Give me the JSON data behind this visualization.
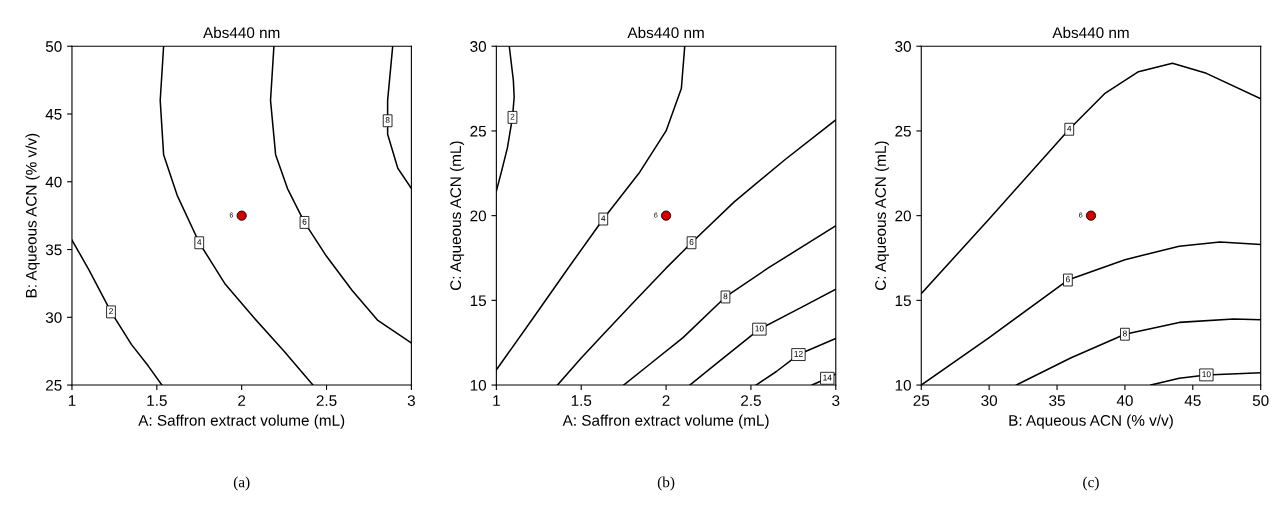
{
  "chart_data": [
    {
      "type": "line",
      "title": "Abs440 nm",
      "xlabel": "A: Saffron extract volume (mL)",
      "ylabel": "B: Aqueous ACN (% v/v)",
      "xlim": [
        1,
        3
      ],
      "ylim": [
        25,
        50
      ],
      "xticks": [
        1,
        1.5,
        2,
        2.5,
        3
      ],
      "yticks": [
        25,
        30,
        35,
        40,
        45,
        50
      ],
      "grid": false,
      "legend": false,
      "annotations": [
        "(a)",
        "6",
        {
          "text": "2",
          "x": 1.23,
          "y": 30.4
        },
        {
          "text": "4",
          "x": 1.75,
          "y": 35.5
        },
        {
          "text": "6",
          "x": 2.37,
          "y": 37
        },
        {
          "text": "8",
          "x": 2.86,
          "y": 44.5
        }
      ],
      "series": [
        {
          "color": "#000000",
          "x": [
            1,
            1.1,
            1.23,
            1.35,
            1.45,
            1.53
          ],
          "values": [
            35.7,
            33.5,
            30.4,
            28,
            26.4,
            25
          ]
        },
        {
          "color": "#000000",
          "x": [
            1.54,
            1.52,
            1.54,
            1.62,
            1.75,
            1.9,
            2.07,
            2.25,
            2.42
          ],
          "values": [
            50,
            46,
            42,
            39,
            35.5,
            32.5,
            30,
            27.5,
            25
          ]
        },
        {
          "color": "#000000",
          "x": [
            2.19,
            2.17,
            2.2,
            2.27,
            2.37,
            2.5,
            2.65,
            2.8,
            3
          ],
          "values": [
            50,
            46,
            42,
            39.5,
            37,
            34.5,
            32,
            29.8,
            28.1
          ]
        },
        {
          "color": "#000000",
          "x": [
            2.89,
            2.86,
            2.86,
            2.86,
            2.92,
            3
          ],
          "values": [
            50,
            46,
            44.5,
            43.5,
            41,
            39.5
          ]
        },
        {
          "type": "scatter",
          "marker": "circle",
          "color": "#d40000",
          "x": [
            2
          ],
          "values": [
            37.5
          ]
        }
      ]
    },
    {
      "type": "line",
      "title": "Abs440 nm",
      "xlabel": "A: Saffron extract volume (mL)",
      "ylabel": "C: Aqueous ACN (mL)",
      "xlim": [
        1,
        3
      ],
      "ylim": [
        10,
        30
      ],
      "xticks": [
        1,
        1.5,
        2,
        2.5,
        3
      ],
      "yticks": [
        10,
        15,
        20,
        25,
        30
      ],
      "grid": false,
      "legend": false,
      "annotations": [
        "(b)",
        "6",
        {
          "text": "2",
          "x": 1.095,
          "y": 25.8
        },
        {
          "text": "4",
          "x": 1.63,
          "y": 19.8
        },
        {
          "text": "6",
          "x": 2.15,
          "y": 18.4
        },
        {
          "text": "8",
          "x": 2.35,
          "y": 15.2
        },
        {
          "text": "10",
          "x": 2.55,
          "y": 13.3
        },
        {
          "text": "12",
          "x": 2.78,
          "y": 11.8
        },
        {
          "text": "14",
          "x": 2.95,
          "y": 10.4
        }
      ],
      "series": [
        {
          "color": "#000000",
          "x": [
            1.076,
            1.1,
            1.105,
            1.095,
            1.065,
            1.03,
            1
          ],
          "values": [
            30,
            28,
            27,
            25.8,
            24,
            22.6,
            21.45
          ]
        },
        {
          "color": "#000000",
          "x": [
            2.11,
            2.09,
            2.0,
            1.84,
            1.63,
            1.43,
            1.22,
            1
          ],
          "values": [
            30,
            27.5,
            25,
            22.5,
            19.8,
            17,
            14,
            10.9
          ]
        },
        {
          "color": "#000000",
          "x": [
            1.36,
            1.5,
            1.65,
            1.8,
            2.0,
            2.15,
            2.4,
            2.7,
            3
          ],
          "values": [
            10,
            11.6,
            13.2,
            14.8,
            16.9,
            18.4,
            20.8,
            23.3,
            25.65
          ]
        },
        {
          "color": "#000000",
          "x": [
            1.75,
            1.9,
            2.1,
            2.35,
            2.6,
            3
          ],
          "values": [
            10,
            11.2,
            12.8,
            15.2,
            16.9,
            19.4
          ]
        },
        {
          "color": "#000000",
          "x": [
            2.14,
            2.3,
            2.55,
            2.8,
            3
          ],
          "values": [
            10,
            11.3,
            13.3,
            14.6,
            15.65
          ]
        },
        {
          "color": "#000000",
          "x": [
            2.53,
            2.65,
            2.78,
            3
          ],
          "values": [
            10,
            10.8,
            11.8,
            12.75
          ]
        },
        {
          "color": "#000000",
          "x": [
            2.86,
            2.95,
            3
          ],
          "values": [
            10,
            10.4,
            10.65
          ]
        },
        {
          "type": "scatter",
          "marker": "circle",
          "color": "#d40000",
          "x": [
            2
          ],
          "values": [
            20
          ]
        }
      ]
    },
    {
      "type": "line",
      "title": "Abs440 nm",
      "xlabel": "B: Aqueous ACN (% v/v)",
      "ylabel": "C: Aqueous ACN (mL)",
      "xlim": [
        25,
        50
      ],
      "ylim": [
        10,
        30
      ],
      "xticks": [
        25,
        30,
        35,
        40,
        45,
        50
      ],
      "yticks": [
        10,
        15,
        20,
        25,
        30
      ],
      "grid": false,
      "legend": false,
      "annotations": [
        "(c)",
        "6",
        {
          "text": "4",
          "x": 35.9,
          "y": 25.1
        },
        {
          "text": "6",
          "x": 35.8,
          "y": 16.2
        },
        {
          "text": "8",
          "x": 40,
          "y": 13
        },
        {
          "text": "10",
          "x": 46,
          "y": 10.6
        }
      ],
      "series": [
        {
          "color": "#000000",
          "x": [
            25,
            30,
            35.9,
            38.5,
            41,
            43.5,
            46,
            50
          ],
          "values": [
            15.4,
            19.8,
            25.1,
            27.2,
            28.5,
            29,
            28.4,
            26.9
          ]
        },
        {
          "color": "#000000",
          "x": [
            25,
            30,
            35.8,
            40,
            44,
            47,
            50
          ],
          "values": [
            10,
            12.8,
            16.2,
            17.4,
            18.2,
            18.45,
            18.3
          ]
        },
        {
          "color": "#000000",
          "x": [
            32,
            36,
            40,
            44,
            48,
            50
          ],
          "values": [
            10,
            11.6,
            13,
            13.7,
            13.9,
            13.85
          ]
        },
        {
          "color": "#000000",
          "x": [
            41.9,
            44,
            46,
            50
          ],
          "values": [
            10,
            10.4,
            10.6,
            10.72
          ]
        },
        {
          "type": "scatter",
          "marker": "circle",
          "color": "#d40000",
          "x": [
            37.5
          ],
          "values": [
            20
          ]
        }
      ]
    }
  ]
}
